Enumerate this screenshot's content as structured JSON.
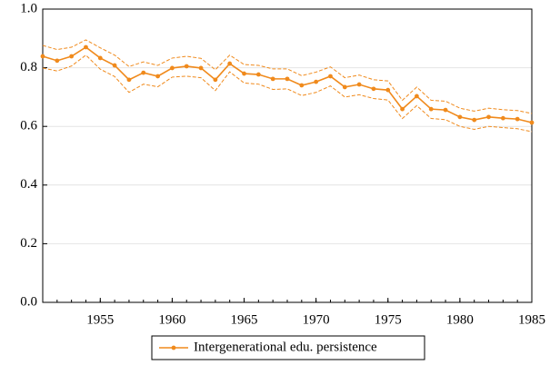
{
  "chart_data": {
    "type": "line",
    "x": [
      1951,
      1952,
      1953,
      1954,
      1955,
      1956,
      1957,
      1958,
      1959,
      1960,
      1961,
      1962,
      1963,
      1964,
      1965,
      1966,
      1967,
      1968,
      1969,
      1970,
      1971,
      1972,
      1973,
      1974,
      1975,
      1976,
      1977,
      1978,
      1979,
      1980,
      1981,
      1982,
      1983,
      1984,
      1985
    ],
    "series": [
      {
        "name": "Intergenerational edu. persistence",
        "color": "#f08a1c",
        "values": [
          0.839,
          0.824,
          0.839,
          0.87,
          0.833,
          0.808,
          0.759,
          0.783,
          0.771,
          0.799,
          0.805,
          0.799,
          0.759,
          0.814,
          0.78,
          0.777,
          0.762,
          0.762,
          0.74,
          0.752,
          0.771,
          0.734,
          0.743,
          0.728,
          0.724,
          0.659,
          0.703,
          0.659,
          0.656,
          0.632,
          0.622,
          0.632,
          0.628,
          0.625,
          0.613
        ],
        "ci_upper": [
          0.876,
          0.862,
          0.87,
          0.895,
          0.868,
          0.843,
          0.804,
          0.82,
          0.808,
          0.833,
          0.839,
          0.832,
          0.793,
          0.843,
          0.811,
          0.808,
          0.796,
          0.796,
          0.773,
          0.785,
          0.803,
          0.766,
          0.775,
          0.759,
          0.755,
          0.689,
          0.734,
          0.689,
          0.686,
          0.662,
          0.652,
          0.662,
          0.657,
          0.654,
          0.644
        ],
        "ci_lower": [
          0.799,
          0.789,
          0.806,
          0.843,
          0.795,
          0.77,
          0.716,
          0.744,
          0.735,
          0.768,
          0.771,
          0.766,
          0.722,
          0.786,
          0.748,
          0.744,
          0.726,
          0.728,
          0.705,
          0.716,
          0.738,
          0.7,
          0.708,
          0.695,
          0.69,
          0.627,
          0.671,
          0.627,
          0.623,
          0.6,
          0.59,
          0.6,
          0.596,
          0.592,
          0.582
        ]
      }
    ],
    "xlim": [
      1951,
      1985
    ],
    "xticks": [
      1955,
      1960,
      1965,
      1970,
      1975,
      1980,
      1985
    ],
    "ylim": [
      0,
      1
    ],
    "yticks": [
      {
        "value": 0,
        "label": "0.0"
      },
      0.2,
      0.4,
      0.6,
      0.8,
      {
        "value": 1,
        "label": "1.0"
      }
    ],
    "grid": true,
    "legend": "bottom"
  }
}
